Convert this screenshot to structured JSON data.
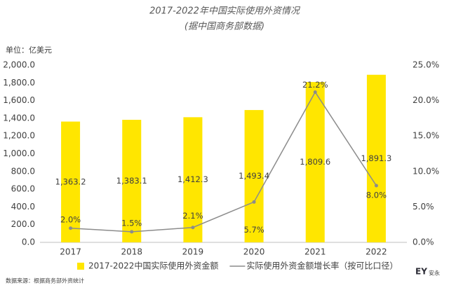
{
  "chart_data": {
    "type": "bar",
    "title": "2017-2022年中国实际使用外资情况",
    "subtitle": "(据中国商务部数据)",
    "y_axis_label": "单位：亿美元",
    "source": "数据来源：根据商务部外资统计",
    "logo": "EY",
    "logo_sub": "安永",
    "categories": [
      "2017",
      "2018",
      "2019",
      "2020",
      "2021",
      "2022"
    ],
    "series": [
      {
        "name": "2017-2022中国实际使用外资金额",
        "type": "bar",
        "color": "#ffe600",
        "values": [
          1363.2,
          1383.1,
          1412.3,
          1493.4,
          1809.6,
          1891.3
        ],
        "value_labels": [
          "1,363.2",
          "1,383.1",
          "1,412.3",
          "1,493.4",
          "1,809.6",
          "1,891.3"
        ]
      },
      {
        "name": "实际使用外资金额增长率（按可比口径）",
        "type": "line",
        "axis": "y2",
        "color": "#8c8c8c",
        "values": [
          2.0,
          1.5,
          2.1,
          5.7,
          21.2,
          8.0
        ],
        "value_labels": [
          "2.0%",
          "1.5%",
          "2.1%",
          "5.7%",
          "21.2%",
          "8.0%"
        ]
      }
    ],
    "ylim": [
      0,
      2000
    ],
    "yticks": [
      {
        "value": 0,
        "label": "0.0"
      },
      {
        "value": 200,
        "label": "200.0"
      },
      {
        "value": 400,
        "label": "400.0"
      },
      {
        "value": 600,
        "label": "600.0"
      },
      {
        "value": 800,
        "label": "800.0"
      },
      {
        "value": 1000,
        "label": "1,000.0"
      },
      {
        "value": 1200,
        "label": "1,200.0"
      },
      {
        "value": 1400,
        "label": "1,400.0"
      },
      {
        "value": 1600,
        "label": "1,600.0"
      },
      {
        "value": 1800,
        "label": "1,800.0"
      },
      {
        "value": 2000,
        "label": "2,000.0"
      }
    ],
    "y2lim": [
      0,
      25
    ],
    "y2ticks": [
      {
        "value": 0,
        "label": "0.0%"
      },
      {
        "value": 5,
        "label": "5.0%"
      },
      {
        "value": 10,
        "label": "10.0%"
      },
      {
        "value": 15,
        "label": "15.0%"
      },
      {
        "value": 20,
        "label": "20.0%"
      },
      {
        "value": 25,
        "label": "25.0%"
      }
    ],
    "grid": false,
    "legend": "bottom"
  }
}
